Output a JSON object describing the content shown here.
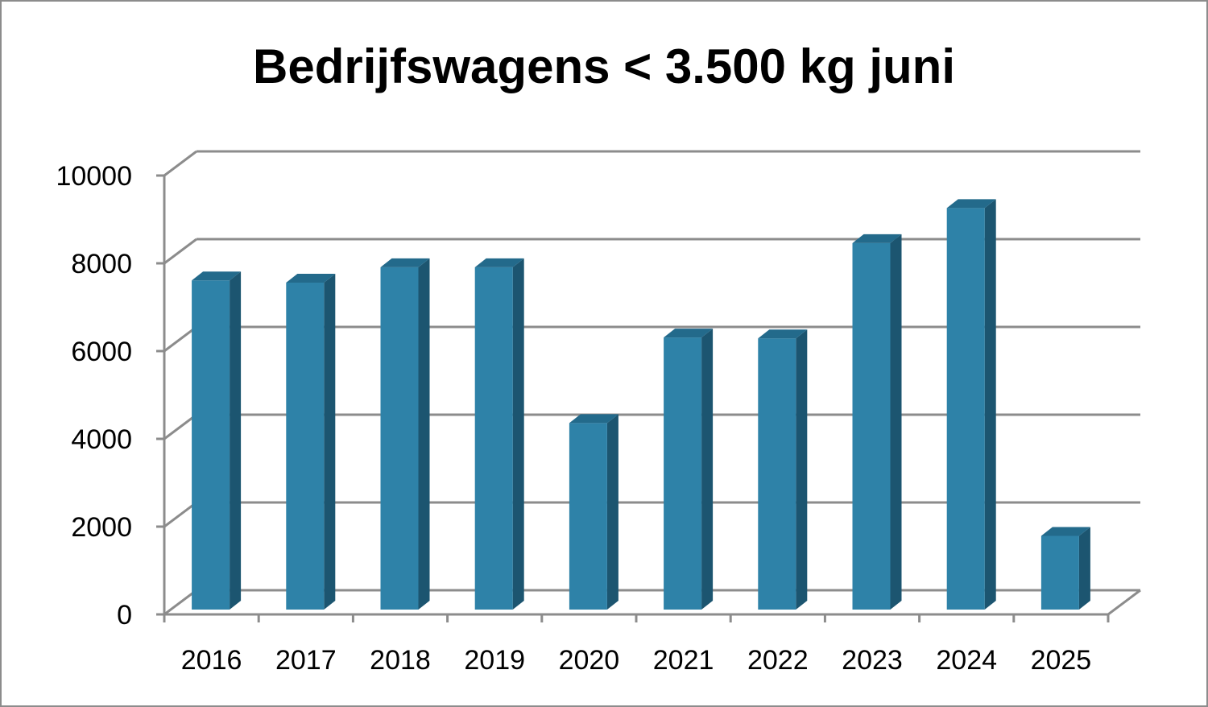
{
  "chart_data": {
    "type": "bar",
    "title": "Bedrijfswagens < 3.500 kg juni",
    "xlabel": "",
    "ylabel": "",
    "categories": [
      "2016",
      "2017",
      "2018",
      "2019",
      "2020",
      "2021",
      "2022",
      "2023",
      "2024",
      "2025"
    ],
    "values": [
      7500,
      7450,
      7800,
      7800,
      4250,
      6200,
      6180,
      8350,
      9150,
      1680
    ],
    "ylim": [
      0,
      10000
    ],
    "yticks": [
      0,
      2000,
      4000,
      6000,
      8000,
      10000
    ],
    "grid": true,
    "legend": "none",
    "style": "3d-column",
    "colors": {
      "bar_front": "#2e82a8",
      "bar_side": "#1c5570",
      "bar_top": "#236a8b",
      "grid": "#8c8c8c",
      "frame": "#8c8c8c"
    }
  }
}
